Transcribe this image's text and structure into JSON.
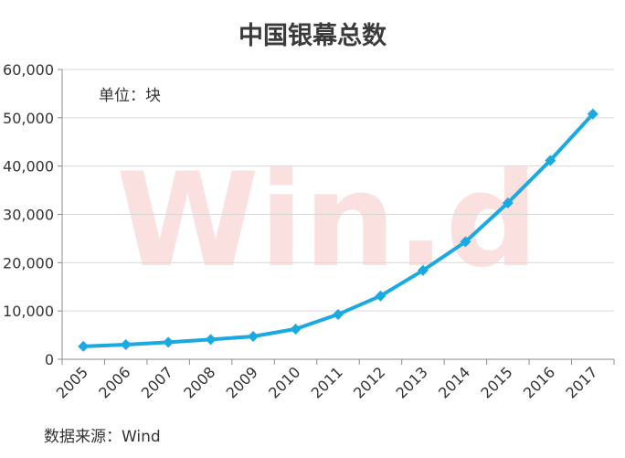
{
  "chart_data": {
    "type": "line",
    "title": "中国银幕总数",
    "unit_note": "单位：块",
    "source_note": "数据来源：Wind",
    "watermark": "Win.d",
    "categories": [
      "2005",
      "2006",
      "2007",
      "2008",
      "2009",
      "2010",
      "2011",
      "2012",
      "2013",
      "2014",
      "2015",
      "2016",
      "2017"
    ],
    "series": [
      {
        "values": [
          2668,
          3034,
          3527,
          4097,
          4723,
          6256,
          9286,
          13118,
          18398,
          24317,
          32377,
          41179,
          50776
        ]
      }
    ],
    "ylim": [
      0,
      60000
    ],
    "yticks": [
      0,
      10000,
      20000,
      30000,
      40000,
      50000,
      60000
    ],
    "ytick_labels": [
      "0",
      "10,000",
      "20,000",
      "30,000",
      "40,000",
      "50,000",
      "60,000"
    ],
    "grid": true,
    "colors": {
      "line": "#1aa9e0",
      "grid": "#d9d9d9",
      "axis": "#8c8c8c",
      "watermark": "#e63c3c"
    }
  }
}
